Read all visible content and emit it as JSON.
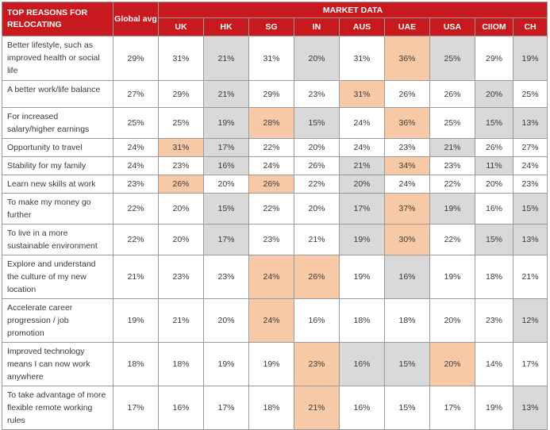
{
  "header": {
    "reasons_title": "TOP REASONS FOR RELOCATING",
    "global_label": "Global avg",
    "market_title": "MARKET DATA",
    "markets": [
      "UK",
      "HK",
      "SG",
      "IN",
      "AUS",
      "UAE",
      "USA",
      "CIIOM",
      "CH"
    ]
  },
  "colors": {
    "header_bg": "#c8191e",
    "highlight_high": "#f8c9a7",
    "highlight_low": "#d9d9d9"
  },
  "rows": [
    {
      "reason": "Better lifestyle, such as improved health or social life",
      "global": "29%",
      "values": [
        "31%",
        "21%",
        "31%",
        "20%",
        "31%",
        "36%",
        "25%",
        "29%",
        "19%"
      ],
      "shade": [
        "",
        "g",
        "",
        "g",
        "",
        "o",
        "g",
        "",
        "g"
      ]
    },
    {
      "reason": "A better work/life balance",
      "global": "27%",
      "values": [
        "29%",
        "21%",
        "29%",
        "23%",
        "31%",
        "26%",
        "26%",
        "20%",
        "25%"
      ],
      "shade": [
        "",
        "g",
        "",
        "",
        "o",
        "",
        "",
        "g",
        ""
      ]
    },
    {
      "reason": "For increased salary/higher earnings",
      "global": "25%",
      "values": [
        "25%",
        "19%",
        "28%",
        "15%",
        "24%",
        "36%",
        "25%",
        "15%",
        "13%"
      ],
      "shade": [
        "",
        "g",
        "o",
        "g",
        "",
        "o",
        "",
        "g",
        "g"
      ]
    },
    {
      "reason": "Opportunity to travel",
      "global": "24%",
      "values": [
        "31%",
        "17%",
        "22%",
        "20%",
        "24%",
        "23%",
        "21%",
        "26%",
        "27%"
      ],
      "shade": [
        "o",
        "g",
        "",
        "",
        "",
        "",
        "g",
        "",
        ""
      ]
    },
    {
      "reason": "Stability for my family",
      "global": "24%",
      "values": [
        "23%",
        "16%",
        "24%",
        "26%",
        "21%",
        "34%",
        "23%",
        "11%",
        "24%"
      ],
      "shade": [
        "",
        "g",
        "",
        "",
        "g",
        "o",
        "",
        "g",
        ""
      ]
    },
    {
      "reason": "Learn new skills at work",
      "global": "23%",
      "values": [
        "26%",
        "20%",
        "26%",
        "22%",
        "20%",
        "24%",
        "22%",
        "20%",
        "23%"
      ],
      "shade": [
        "o",
        "",
        "o",
        "",
        "g",
        "",
        "",
        "",
        ""
      ]
    },
    {
      "reason": "To make my money go further",
      "global": "22%",
      "values": [
        "20%",
        "15%",
        "22%",
        "20%",
        "17%",
        "37%",
        "19%",
        "16%",
        "15%"
      ],
      "shade": [
        "",
        "g",
        "",
        "",
        "g",
        "o",
        "g",
        "",
        "g"
      ]
    },
    {
      "reason": "To live in a more sustainable environment",
      "global": "22%",
      "values": [
        "20%",
        "17%",
        "23%",
        "21%",
        "19%",
        "30%",
        "22%",
        "15%",
        "13%"
      ],
      "shade": [
        "",
        "g",
        "",
        "",
        "g",
        "o",
        "",
        "g",
        "g"
      ]
    },
    {
      "reason": "Explore and understand the culture of my new location",
      "global": "21%",
      "values": [
        "23%",
        "23%",
        "24%",
        "26%",
        "19%",
        "16%",
        "19%",
        "18%",
        "21%"
      ],
      "shade": [
        "",
        "",
        "o",
        "o",
        "",
        "g",
        "",
        "",
        ""
      ]
    },
    {
      "reason": "Accelerate career progression / job promotion",
      "global": "19%",
      "values": [
        "21%",
        "20%",
        "24%",
        "16%",
        "18%",
        "18%",
        "20%",
        "23%",
        "12%"
      ],
      "shade": [
        "",
        "",
        "o",
        "",
        "",
        "",
        "",
        "",
        "g"
      ]
    },
    {
      "reason": "Improved technology means I can now work anywhere",
      "global": "18%",
      "values": [
        "18%",
        "19%",
        "19%",
        "23%",
        "16%",
        "15%",
        "20%",
        "14%",
        "17%"
      ],
      "shade": [
        "",
        "",
        "",
        "o",
        "g",
        "g",
        "o",
        "",
        ""
      ]
    },
    {
      "reason": "To take advantage of more flexible remote working rules",
      "global": "17%",
      "values": [
        "16%",
        "17%",
        "18%",
        "21%",
        "16%",
        "15%",
        "17%",
        "19%",
        "13%"
      ],
      "shade": [
        "",
        "",
        "",
        "o",
        "",
        "",
        "",
        "",
        "g"
      ]
    }
  ]
}
